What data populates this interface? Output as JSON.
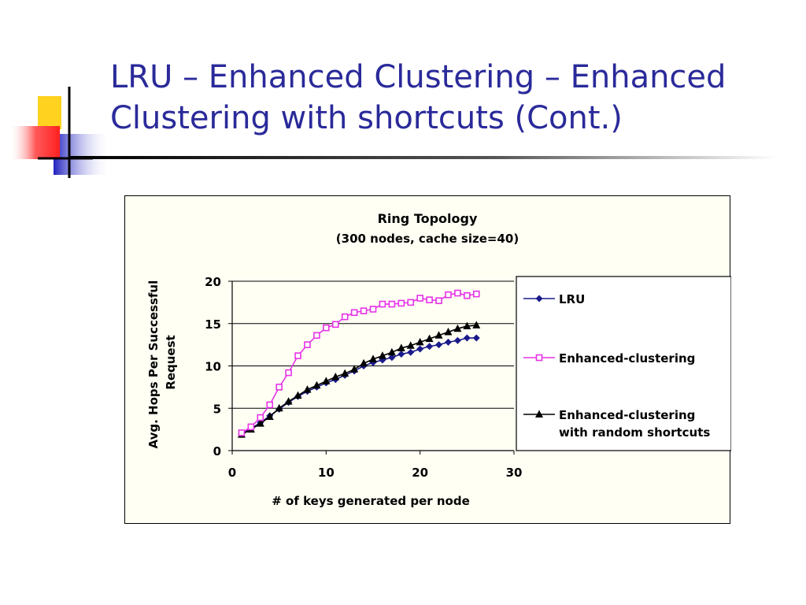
{
  "slide": {
    "title_line1": "LRU – Enhanced Clustering – Enhanced",
    "title_line2": "Clustering with shortcuts (Cont.)"
  },
  "colors": {
    "title": "#2a2a9a",
    "accent_yellow": "#ffd21f",
    "accent_red": "#ff3b3b",
    "accent_blue": "#2a2ad6",
    "lru": "#1a1a8c",
    "enhanced_clustering": "#e633e6",
    "enhanced_shortcuts": "#000000",
    "chart_background": "#fffff4"
  },
  "chart_data": {
    "type": "line",
    "title": "Ring Topology",
    "subtitle": "(300 nodes, cache size=40)",
    "xlabel": "# of keys generated per node",
    "ylabel": "Avg. Hops Per Successful Request",
    "xlim": [
      0,
      30
    ],
    "ylim": [
      0,
      20
    ],
    "xticks": [
      0,
      10,
      20,
      30
    ],
    "yticks": [
      0,
      5,
      10,
      15,
      20
    ],
    "grid": "horizontal",
    "legend_position": "right",
    "x": [
      1,
      2,
      3,
      4,
      5,
      6,
      7,
      8,
      9,
      10,
      11,
      12,
      13,
      14,
      15,
      16,
      17,
      18,
      19,
      20,
      21,
      22,
      23,
      24,
      25,
      26
    ],
    "series": [
      {
        "name": "LRU",
        "marker": "diamond",
        "color": "#1a1a8c",
        "values": [
          2.0,
          2.6,
          3.3,
          4.1,
          4.9,
          5.7,
          6.4,
          7.0,
          7.5,
          8.0,
          8.4,
          8.9,
          9.4,
          10.0,
          10.4,
          10.7,
          11.0,
          11.4,
          11.6,
          12.0,
          12.3,
          12.5,
          12.8,
          13.0,
          13.3,
          13.3
        ]
      },
      {
        "name": "Enhanced-clustering",
        "marker": "square",
        "color": "#e633e6",
        "values": [
          2.1,
          2.8,
          3.9,
          5.4,
          7.5,
          9.2,
          11.2,
          12.5,
          13.6,
          14.5,
          14.9,
          15.8,
          16.3,
          16.5,
          16.7,
          17.3,
          17.3,
          17.4,
          17.5,
          18.0,
          17.8,
          17.7,
          18.4,
          18.6,
          18.3,
          18.5
        ]
      },
      {
        "name": "Enhanced-clustering with random shortcuts",
        "marker": "triangle",
        "color": "#000000",
        "values": [
          1.9,
          2.5,
          3.2,
          4.0,
          5.0,
          5.8,
          6.5,
          7.2,
          7.7,
          8.2,
          8.7,
          9.1,
          9.6,
          10.3,
          10.8,
          11.2,
          11.6,
          12.1,
          12.4,
          12.8,
          13.2,
          13.6,
          14.0,
          14.4,
          14.7,
          14.8
        ]
      }
    ],
    "legend": {
      "lru": "LRU",
      "enhanced": "Enhanced-clustering",
      "shortcuts_line1": "Enhanced-clustering",
      "shortcuts_line2": "with random shortcuts"
    }
  }
}
